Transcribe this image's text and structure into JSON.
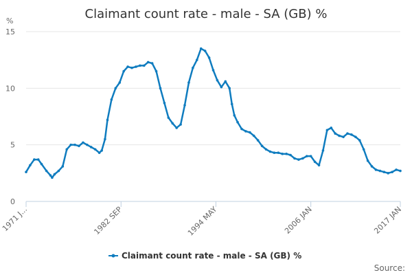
{
  "chart_data": {
    "type": "line",
    "title": "Claimant count rate - male - SA (GB) %",
    "ylabel": "%",
    "xlabel": "",
    "ylim": [
      0,
      15
    ],
    "yticks": [
      0,
      5,
      10,
      15
    ],
    "xlim": [
      1971.0,
      2017.0
    ],
    "xtick_labels": [
      {
        "label": "1971 J...",
        "x": 1971.0
      },
      {
        "label": "1982 SEP",
        "x": 1982.67
      },
      {
        "label": "1994 MAY",
        "x": 1994.33
      },
      {
        "label": "2006 JAN",
        "x": 2006.0
      },
      {
        "label": "2017 JAN",
        "x": 2017.0
      }
    ],
    "grid": true,
    "legend_position": "bottom",
    "series": [
      {
        "name": "Claimant count rate - male - SA (GB) %",
        "color": "#0f7cbf",
        "x": [
          1971.0,
          1971.5,
          1972.0,
          1972.5,
          1972.9,
          1973.5,
          1974.0,
          1974.2,
          1974.5,
          1975.0,
          1975.5,
          1976.0,
          1976.5,
          1977.0,
          1977.5,
          1978.0,
          1978.5,
          1979.0,
          1979.5,
          1980.0,
          1980.3,
          1980.7,
          1981.0,
          1981.5,
          1982.0,
          1982.5,
          1983.0,
          1983.5,
          1984.0,
          1984.5,
          1985.0,
          1985.5,
          1986.0,
          1986.5,
          1987.0,
          1987.5,
          1988.0,
          1988.5,
          1989.0,
          1989.5,
          1990.0,
          1990.5,
          1991.0,
          1991.5,
          1992.0,
          1992.5,
          1993.0,
          1993.5,
          1994.0,
          1994.5,
          1995.0,
          1995.5,
          1996.0,
          1996.3,
          1996.6,
          1997.0,
          1997.5,
          1998.0,
          1998.5,
          1999.0,
          1999.5,
          2000.0,
          2000.5,
          2001.0,
          2001.5,
          2002.0,
          2002.5,
          2003.0,
          2003.5,
          2004.0,
          2004.5,
          2005.0,
          2005.5,
          2006.0,
          2006.5,
          2007.0,
          2007.5,
          2008.0,
          2008.5,
          2009.0,
          2009.5,
          2010.0,
          2010.5,
          2011.0,
          2011.5,
          2012.0,
          2012.5,
          2013.0,
          2013.5,
          2014.0,
          2014.5,
          2015.0,
          2015.5,
          2016.0,
          2016.5,
          2017.0
        ],
        "values": [
          2.6,
          3.2,
          3.7,
          3.7,
          3.3,
          2.7,
          2.3,
          2.1,
          2.4,
          2.7,
          3.1,
          4.6,
          5.0,
          5.0,
          4.9,
          5.2,
          5.0,
          4.8,
          4.6,
          4.3,
          4.5,
          5.5,
          7.2,
          9.0,
          10.0,
          10.5,
          11.5,
          11.9,
          11.8,
          11.9,
          12.0,
          12.0,
          12.3,
          12.2,
          11.5,
          10.0,
          8.7,
          7.4,
          6.9,
          6.5,
          6.8,
          8.5,
          10.5,
          11.8,
          12.5,
          13.5,
          13.3,
          12.7,
          11.6,
          10.7,
          10.1,
          10.6,
          10.0,
          8.6,
          7.6,
          7.0,
          6.4,
          6.2,
          6.1,
          5.8,
          5.4,
          4.9,
          4.6,
          4.4,
          4.3,
          4.3,
          4.2,
          4.2,
          4.1,
          3.8,
          3.7,
          3.8,
          4.0,
          4.0,
          3.5,
          3.2,
          4.5,
          6.3,
          6.5,
          6.0,
          5.8,
          5.7,
          6.0,
          5.9,
          5.7,
          5.4,
          4.6,
          3.6,
          3.1,
          2.8,
          2.7,
          2.6,
          2.5,
          2.6,
          2.8,
          2.7
        ]
      }
    ],
    "source_label": "Source:"
  }
}
